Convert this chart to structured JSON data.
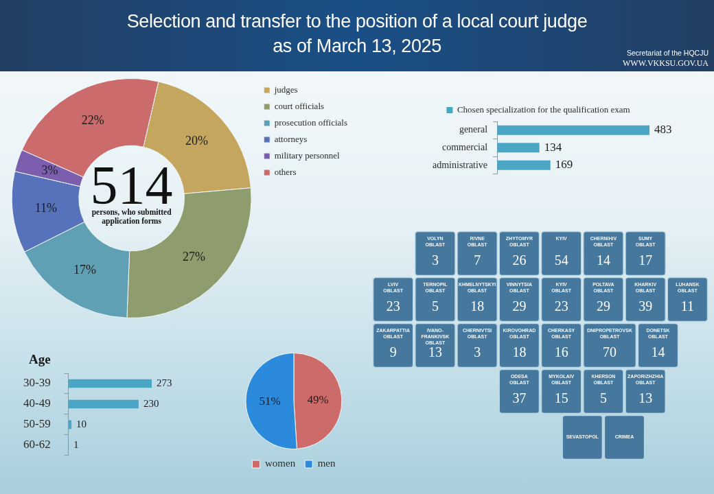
{
  "chart_data": [
    {
      "type": "donut",
      "title": "Selection and transfer to the position of a local court judge",
      "subtitle": "as of March 13, 2025",
      "categories": [
        "judges",
        "court officials",
        "prosecution officials",
        "attorneys",
        "military personnel",
        "others"
      ],
      "values": [
        20,
        27,
        17,
        11,
        3,
        22
      ],
      "colors": [
        "#c4a65e",
        "#8e9c6e",
        "#5fa0b5",
        "#5572ba",
        "#7b5fae",
        "#cc6b6b"
      ],
      "value_labels": [
        "20%",
        "27%",
        "17%",
        "11%",
        "3%",
        "22%"
      ],
      "legend": "right",
      "annotations": [
        "Secretariat of the HQCJU",
        "WWW.VKKSU.GOV.UA",
        "514",
        "persons, who submitted application forms"
      ]
    },
    {
      "type": "bar",
      "orientation": "horizontal",
      "categories": [
        "general",
        "commercial",
        "administrative"
      ],
      "series": [
        {
          "name": "Chosen specialization for the qualification exam",
          "color": "#4ba6c6",
          "values": [
            483,
            134,
            169
          ]
        }
      ],
      "data_labels": true,
      "legend": "top",
      "tick_labels": "y"
    },
    {
      "type": "other",
      "categories": [
        "VOLYN OBLAST",
        "RIVNE OBLAST",
        "ZHYTOMYR OBLAST",
        "KYIV",
        "CHERNIHIV OBLAST",
        "SUMY OBLAST",
        "LVIV OBLAST",
        "TERNOPIL OBLAST",
        "KHMELNYTSKYI OBLAST",
        "VINNYTSIA OBLAST",
        "KYIV OBLAST",
        "POLTAVA OBLAST",
        "KHARKIV OBLAST",
        "LUHANSK OBLAST",
        "ZAKARPATTIA OBLAST",
        "IVANO-FRANKIVSK OBLAST",
        "CHERNIVTSI OBLAST",
        "KIROVOHRAD OBLAST",
        "CHERKASY OBLAST",
        "DNIPROPETROVSK OBLAST",
        "DONETSK OBLAST",
        "ODESA OBLAST",
        "MYKOLAIV OBLAST",
        "KHERSON OBLAST",
        "ZAPORIZHZHIA OBLAST",
        "CRIMEA",
        "SEVASTOPOL"
      ],
      "values": [
        3,
        7,
        26,
        54,
        14,
        17,
        23,
        5,
        18,
        29,
        23,
        29,
        39,
        11,
        9,
        13,
        3,
        18,
        16,
        70,
        14,
        37,
        15,
        5,
        13,
        null,
        null
      ],
      "color": "#46779c",
      "data_labels": true
    },
    {
      "type": "bar",
      "orientation": "horizontal",
      "title": "Age",
      "categories": [
        "30-39",
        "40-49",
        "50-59",
        "60-62"
      ],
      "values": [
        273,
        230,
        10,
        1
      ],
      "color": "#4ba6c6",
      "data_labels": true,
      "tick_labels": "y"
    },
    {
      "type": "pie",
      "categories": [
        "women",
        "men"
      ],
      "values": [
        49,
        51
      ],
      "colors": [
        "#cd6b6a",
        "#2b8adb"
      ],
      "value_labels": [
        "49%",
        "51%"
      ],
      "legend": "bottom"
    }
  ]
}
